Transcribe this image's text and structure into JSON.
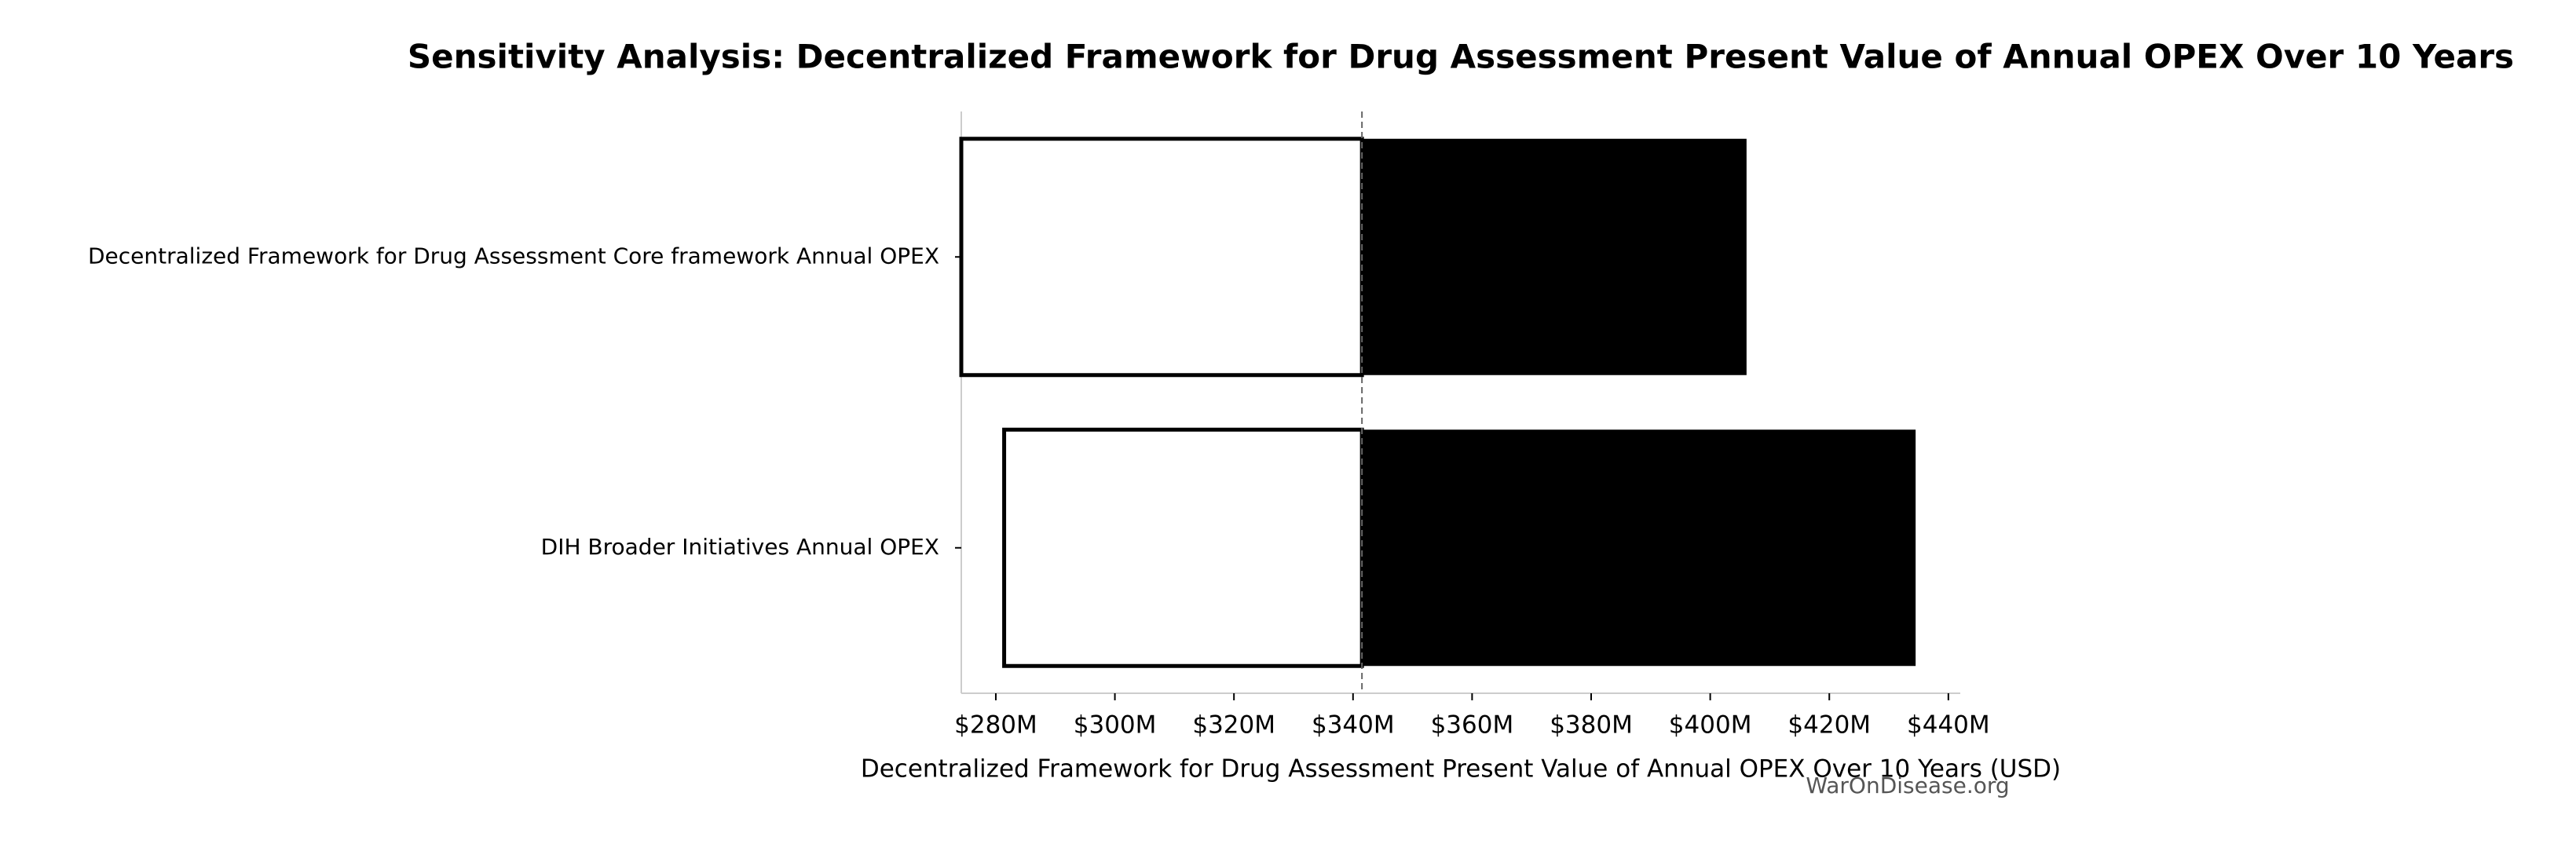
{
  "chart_data": {
    "type": "tornado",
    "title": "Sensitivity Analysis: Decentralized Framework for Drug Assessment Present Value of Annual OPEX Over 10 Years",
    "xlabel": "Decentralized Framework for Drug Assessment Present Value of Annual OPEX Over 10 Years (USD)",
    "watermark": "WarOnDisease.org",
    "categories": [
      "Decentralized Framework for Drug Assessment Core framework Annual OPEX",
      "DIH Broader Initiatives Annual OPEX"
    ],
    "base_value": 341.5,
    "low_values": [
      274.2,
      281.4
    ],
    "high_values": [
      406.1,
      434.5
    ],
    "low_color": "#ffffff",
    "high_color": "#000000",
    "xlim": [
      274.2,
      442
    ],
    "xticks": [
      {
        "value": 280,
        "label": "$280M"
      },
      {
        "value": 300,
        "label": "$300M"
      },
      {
        "value": 320,
        "label": "$320M"
      },
      {
        "value": 340,
        "label": "$340M"
      },
      {
        "value": 360,
        "label": "$360M"
      },
      {
        "value": 380,
        "label": "$380M"
      },
      {
        "value": 400,
        "label": "$400M"
      },
      {
        "value": 420,
        "label": "$420M"
      },
      {
        "value": 440,
        "label": "$440M"
      }
    ]
  }
}
